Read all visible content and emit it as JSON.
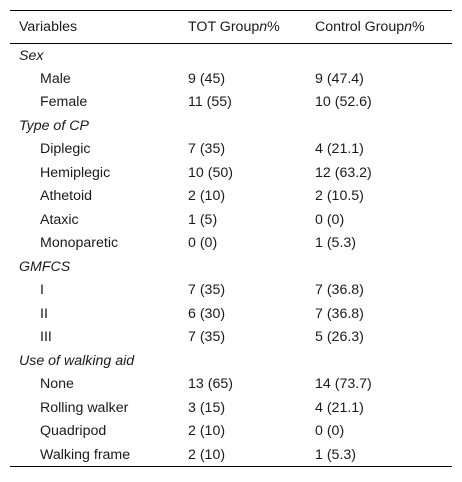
{
  "table": {
    "headers": {
      "variables": "Variables",
      "tot_prefix": "TOT Group",
      "tot_n": "n",
      "tot_suffix": "%",
      "control_prefix": "Control Group",
      "control_n": "n",
      "control_suffix": "%"
    },
    "groups": [
      {
        "label": "Sex",
        "rows": [
          {
            "label": "Male",
            "tot": "9 (45)",
            "control": "9 (47.4)"
          },
          {
            "label": "Female",
            "tot": "11 (55)",
            "control": "10 (52.6)"
          }
        ]
      },
      {
        "label": "Type of CP",
        "rows": [
          {
            "label": "Diplegic",
            "tot": "7 (35)",
            "control": "4 (21.1)"
          },
          {
            "label": "Hemiplegic",
            "tot": "10 (50)",
            "control": "12 (63.2)"
          },
          {
            "label": "Athetoid",
            "tot": "2 (10)",
            "control": "2 (10.5)"
          },
          {
            "label": "Ataxic",
            "tot": "1 (5)",
            "control": "0 (0)"
          },
          {
            "label": "Monoparetic",
            "tot": "0 (0)",
            "control": "1 (5.3)"
          }
        ]
      },
      {
        "label": "GMFCS",
        "rows": [
          {
            "label": "I",
            "tot": "7 (35)",
            "control": "7 (36.8)"
          },
          {
            "label": "II",
            "tot": "6 (30)",
            "control": "7 (36.8)"
          },
          {
            "label": "III",
            "tot": "7 (35)",
            "control": "5 (26.3)"
          }
        ]
      },
      {
        "label": "Use of walking aid",
        "rows": [
          {
            "label": "None",
            "tot": "13 (65)",
            "control": "14 (73.7)"
          },
          {
            "label": "Rolling walker",
            "tot": "3 (15)",
            "control": "4 (21.1)"
          },
          {
            "label": "Quadripod",
            "tot": "2 (10)",
            "control": "0 (0)"
          },
          {
            "label": "Walking frame",
            "tot": "2 (10)",
            "control": "1 (5.3)"
          }
        ]
      }
    ]
  }
}
